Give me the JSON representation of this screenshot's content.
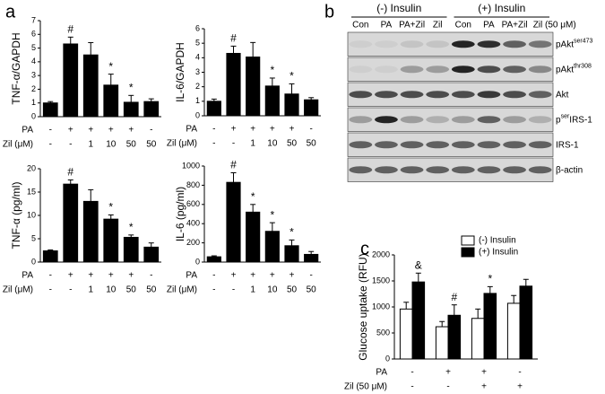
{
  "panels": [
    "a",
    "b",
    "c"
  ],
  "chart_data": [
    {
      "type": "bar",
      "ylabel": "TNF-α/GAPDH",
      "ylim": [
        0,
        7
      ],
      "yticks": [
        0,
        1,
        2,
        3,
        4,
        5,
        6,
        7
      ],
      "values": [
        1.0,
        5.3,
        4.5,
        2.3,
        1.05,
        1.1
      ],
      "errors": [
        0.1,
        0.5,
        0.9,
        0.8,
        0.5,
        0.2
      ],
      "color": "#000000",
      "annotations": [
        null,
        "#",
        null,
        "*",
        "*",
        null
      ],
      "rows": [
        {
          "label": "PA",
          "values": [
            "-",
            "+",
            "+",
            "+",
            "+",
            "-"
          ]
        },
        {
          "label": "Zil (μM)",
          "values": [
            "-",
            "-",
            "1",
            "10",
            "50",
            "50"
          ]
        }
      ]
    },
    {
      "type": "bar",
      "ylabel": "IL-6/GAPDH",
      "ylim": [
        0,
        6
      ],
      "yticks": [
        0,
        1,
        2,
        3,
        4,
        5,
        6
      ],
      "values": [
        1.0,
        4.3,
        4.05,
        2.05,
        1.5,
        1.1
      ],
      "errors": [
        0.15,
        0.5,
        1.0,
        0.55,
        0.7,
        0.15
      ],
      "color": "#000000",
      "annotations": [
        null,
        "#",
        null,
        "*",
        "*",
        null
      ],
      "rows": [
        {
          "label": "PA",
          "values": [
            "-",
            "+",
            "+",
            "+",
            "+",
            "-"
          ]
        },
        {
          "label": "Zil (μM)",
          "values": [
            "-",
            "-",
            "1",
            "10",
            "50",
            "50"
          ]
        }
      ]
    },
    {
      "type": "bar",
      "ylabel": "TNF-α (pg/ml)",
      "ylim": [
        0,
        20
      ],
      "yticks": [
        0,
        5,
        10,
        15,
        20
      ],
      "values": [
        2.4,
        16.7,
        13,
        9.2,
        5.3,
        3.2
      ],
      "errors": [
        0.2,
        0.9,
        2.5,
        0.9,
        0.5,
        0.9
      ],
      "color": "#000000",
      "annotations": [
        null,
        "#",
        null,
        "*",
        "*",
        null
      ],
      "rows": [
        {
          "label": "PA",
          "values": [
            "-",
            "+",
            "+",
            "+",
            "+",
            "-"
          ]
        },
        {
          "label": "Zil (μM)",
          "values": [
            "-",
            "-",
            "1",
            "10",
            "50",
            "50"
          ]
        }
      ]
    },
    {
      "type": "bar",
      "ylabel": "IL-6 (pg/ml)",
      "ylim": [
        0,
        1000
      ],
      "yticks": [
        0,
        200,
        400,
        600,
        800,
        1000
      ],
      "values": [
        55,
        830,
        520,
        320,
        170,
        80
      ],
      "errors": [
        10,
        100,
        80,
        90,
        60,
        30
      ],
      "color": "#000000",
      "annotations": [
        null,
        "#",
        "*",
        "*",
        "*",
        null
      ],
      "rows": [
        {
          "label": "PA",
          "values": [
            "-",
            "+",
            "+",
            "+",
            "+",
            "-"
          ]
        },
        {
          "label": "Zil (μM)",
          "values": [
            "-",
            "-",
            "1",
            "10",
            "50",
            "50"
          ]
        }
      ]
    },
    {
      "type": "grouped_bar",
      "ylabel": "Glucose uptake (RFU)",
      "ylim": [
        0,
        2000
      ],
      "yticks": [
        0,
        500,
        1000,
        1500,
        2000
      ],
      "series": [
        {
          "name": "(-) Insulin",
          "color": "#ffffff",
          "values": [
            960,
            620,
            780,
            1070
          ],
          "errors": [
            130,
            100,
            180,
            150
          ],
          "annotations": [
            null,
            null,
            null,
            null
          ]
        },
        {
          "name": "(+) Insulin",
          "color": "#000000",
          "values": [
            1480,
            840,
            1260,
            1400
          ],
          "errors": [
            170,
            200,
            130,
            130
          ],
          "annotations": [
            "&",
            "#",
            "*",
            null
          ]
        }
      ],
      "rows": [
        {
          "label": "PA",
          "values": [
            "-",
            "+",
            "+",
            "-"
          ]
        },
        {
          "label": "Zil (50 μM)",
          "values": [
            "-",
            "-",
            "+",
            "+"
          ]
        }
      ]
    }
  ],
  "blot": {
    "groups": [
      "(-) Insulin",
      "(+) Insulin"
    ],
    "lanes": [
      "Con",
      "PA",
      "PA+Zil",
      "Zil",
      "Con",
      "PA",
      "PA+Zil",
      "Zil (50 μM)"
    ],
    "rows": [
      {
        "base": "pAkt",
        "sup": "ser473",
        "post": ""
      },
      {
        "base": "pAkt",
        "sup": "thr308",
        "post": ""
      },
      {
        "base": "Akt",
        "sup": "",
        "post": ""
      },
      {
        "base": "p",
        "sup": "ser",
        "post": "IRS-1"
      },
      {
        "base": "IRS-1",
        "sup": "",
        "post": ""
      },
      {
        "base": "β-actin",
        "sup": "",
        "post": ""
      }
    ]
  }
}
